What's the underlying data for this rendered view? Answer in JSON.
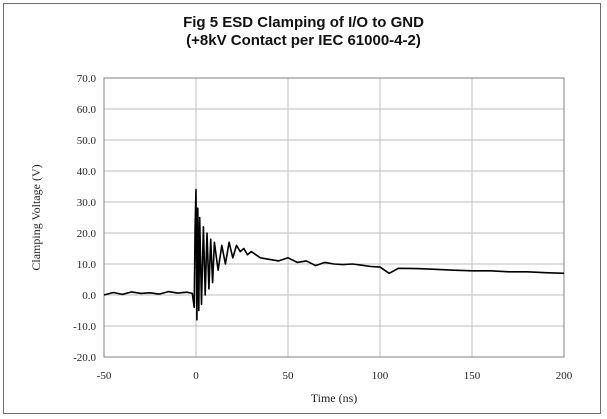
{
  "chart_data": {
    "type": "line",
    "title": "Fig 5 ESD Clamping of I/O to GND",
    "subtitle": "(+8kV Contact per IEC 61000-4-2)",
    "xlabel": "Time (ns)",
    "ylabel": "Clamping Voltage (V)",
    "xlim": [
      -50,
      200
    ],
    "ylim": [
      -20,
      70
    ],
    "xticks": [
      "-50",
      "0",
      "50",
      "100",
      "150",
      "200"
    ],
    "yticks": [
      "-20.0",
      "-10.0",
      "0.0",
      "10.0",
      "20.0",
      "30.0",
      "40.0",
      "50.0",
      "60.0",
      "70.0"
    ],
    "grid": true,
    "series": [
      {
        "color": "#000000",
        "x": [
          -50,
          -45,
          -40,
          -35,
          -30,
          -25,
          -20,
          -15,
          -10,
          -5,
          -2,
          -1,
          -0.5,
          0,
          0.5,
          1,
          1.5,
          2,
          3,
          4,
          5,
          6,
          7,
          8,
          9,
          10,
          12,
          14,
          16,
          18,
          20,
          22,
          24,
          26,
          28,
          30,
          35,
          40,
          45,
          50,
          55,
          60,
          65,
          70,
          75,
          80,
          85,
          90,
          95,
          100,
          105,
          110,
          120,
          130,
          140,
          150,
          160,
          170,
          180,
          190,
          200
        ],
        "y": [
          0.0,
          0.8,
          0.2,
          1.0,
          0.5,
          0.7,
          0.3,
          1.1,
          0.6,
          0.9,
          0.5,
          -4.0,
          22.0,
          34.0,
          -8.0,
          28.0,
          -5.0,
          25.0,
          -3.0,
          22.0,
          0.0,
          20.0,
          2.0,
          18.0,
          4.0,
          17.0,
          8.0,
          16.0,
          10.0,
          17.0,
          12.0,
          16.0,
          14.0,
          15.0,
          13.0,
          14.0,
          12.0,
          11.5,
          11.0,
          12.0,
          10.5,
          11.0,
          9.5,
          10.5,
          10.0,
          9.8,
          10.0,
          9.6,
          9.2,
          9.0,
          7.0,
          8.6,
          8.5,
          8.3,
          8.0,
          7.8,
          7.8,
          7.5,
          7.5,
          7.2,
          7.0
        ]
      }
    ]
  }
}
